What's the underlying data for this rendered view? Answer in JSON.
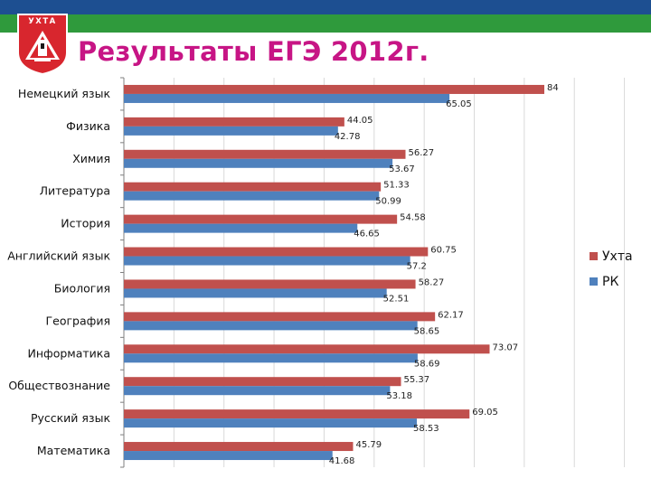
{
  "header": {
    "title": "Результаты ЕГЭ 2012г.",
    "logo_text": "УХТА"
  },
  "colors": {
    "band_blue": "#1d4f91",
    "band_green": "#2f9a3c",
    "title": "#c71585",
    "series_ukhta": "#c0504d",
    "series_rk": "#4f81bd"
  },
  "chart_data": {
    "type": "bar",
    "orientation": "horizontal",
    "title": "",
    "xlabel": "",
    "ylabel": "",
    "xlim": [
      0,
      100
    ],
    "grid": true,
    "legend_position": "right",
    "categories": [
      "Немецкий язык",
      "Физика",
      "Химия",
      "Литература",
      "История",
      "Английский язык",
      "Биология",
      "География",
      "Информатика",
      "Обществознание",
      "Русский язык",
      "Математика"
    ],
    "series": [
      {
        "name": "Ухта",
        "color": "#c0504d",
        "values": [
          84,
          44.05,
          56.27,
          51.33,
          54.58,
          60.75,
          58.27,
          62.17,
          73.07,
          55.37,
          69.05,
          45.79
        ],
        "labels": [
          "84",
          "44.05",
          "56.27",
          "51.33",
          "54.58",
          "60.75",
          "58.27",
          "62.17",
          "73.07",
          "55.37",
          "69.05",
          "45.79"
        ]
      },
      {
        "name": "РК",
        "color": "#4f81bd",
        "values": [
          65.05,
          42.78,
          53.67,
          50.99,
          46.65,
          57.2,
          52.51,
          58.65,
          58.69,
          53.18,
          58.53,
          41.68
        ],
        "labels": [
          "65.05",
          "42.78",
          "53.67",
          "50.99",
          "46.65",
          "57.2",
          "52.51",
          "58.65",
          "58.69",
          "53.18",
          "58.53",
          "41.68"
        ]
      }
    ]
  }
}
